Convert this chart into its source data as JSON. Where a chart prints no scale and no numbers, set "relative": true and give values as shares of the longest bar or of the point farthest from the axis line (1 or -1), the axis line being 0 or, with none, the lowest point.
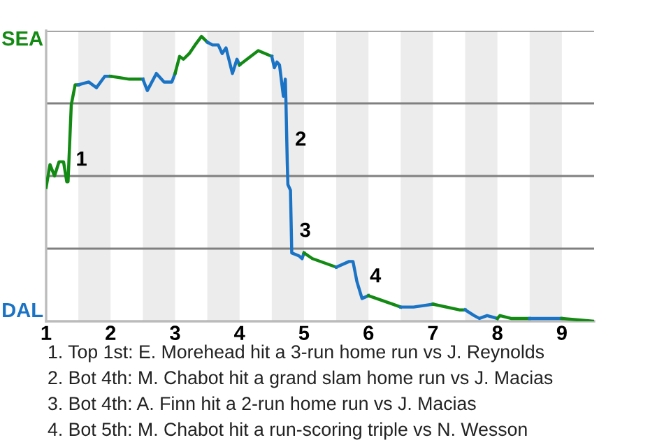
{
  "chart_data": {
    "type": "line",
    "relative": true,
    "xlim": [
      1,
      9.5
    ],
    "xticks": [
      1,
      2,
      3,
      4,
      5,
      6,
      7,
      8,
      9
    ],
    "grid": "y",
    "legend": false,
    "marker": "none",
    "line_style": "solid",
    "series": [
      {
        "color": "#138a13",
        "x": [
          1.0,
          1.06,
          1.13,
          1.2,
          1.27,
          1.32,
          1.34,
          1.39,
          1.45,
          1.5
        ],
        "values": [
          0.47,
          0.55,
          0.51,
          0.56,
          0.56,
          0.49,
          0.49,
          0.76,
          0.83,
          0.83
        ]
      },
      {
        "color": "#1a73c4",
        "x": [
          1.5,
          1.66,
          1.78,
          1.91,
          2.0
        ],
        "values": [
          0.83,
          0.84,
          0.82,
          0.86,
          0.86
        ]
      },
      {
        "color": "#138a13",
        "x": [
          2.0,
          2.29,
          2.5
        ],
        "values": [
          0.86,
          0.85,
          0.85
        ]
      },
      {
        "color": "#1a73c4",
        "x": [
          2.5,
          2.57,
          2.71,
          2.83,
          2.95,
          3.0
        ],
        "values": [
          0.85,
          0.81,
          0.87,
          0.84,
          0.84,
          0.87
        ]
      },
      {
        "color": "#138a13",
        "x": [
          3.0,
          3.07,
          3.13,
          3.22,
          3.31,
          3.41,
          3.5
        ],
        "values": [
          0.87,
          0.93,
          0.92,
          0.94,
          0.97,
          1.0,
          0.98
        ]
      },
      {
        "color": "#1a73c4",
        "x": [
          3.5,
          3.58,
          3.67,
          3.73,
          3.79,
          3.89,
          3.96,
          4.0
        ],
        "values": [
          0.98,
          0.97,
          0.97,
          0.94,
          0.96,
          0.87,
          0.92,
          0.9
        ]
      },
      {
        "color": "#138a13",
        "x": [
          4.0,
          4.29,
          4.5
        ],
        "values": [
          0.9,
          0.95,
          0.93
        ]
      },
      {
        "color": "#1a73c4",
        "x": [
          4.5,
          4.54,
          4.58,
          4.62,
          4.68,
          4.71,
          4.72,
          4.74,
          4.75,
          4.79,
          4.81,
          4.92,
          4.97,
          5.0
        ],
        "values": [
          0.93,
          0.89,
          0.91,
          0.9,
          0.79,
          0.85,
          0.77,
          0.56,
          0.48,
          0.46,
          0.24,
          0.23,
          0.22,
          0.24
        ]
      },
      {
        "color": "#138a13",
        "x": [
          5.0,
          5.13,
          5.5
        ],
        "values": [
          0.24,
          0.22,
          0.19
        ]
      },
      {
        "color": "#1a73c4",
        "x": [
          5.5,
          5.7,
          5.76,
          5.82,
          5.9,
          6.0
        ],
        "values": [
          0.19,
          0.21,
          0.21,
          0.14,
          0.08,
          0.09
        ]
      },
      {
        "color": "#138a13",
        "x": [
          6.0,
          6.38,
          6.5
        ],
        "values": [
          0.09,
          0.06,
          0.05
        ]
      },
      {
        "color": "#1a73c4",
        "x": [
          6.5,
          6.7,
          7.0
        ],
        "values": [
          0.05,
          0.05,
          0.06
        ]
      },
      {
        "color": "#138a13",
        "x": [
          7.0,
          7.41,
          7.5
        ],
        "values": [
          0.06,
          0.04,
          0.04
        ]
      },
      {
        "color": "#1a73c4",
        "x": [
          7.5,
          7.64,
          7.72,
          7.84,
          8.0
        ],
        "values": [
          0.04,
          0.02,
          0.01,
          0.02,
          0.01
        ]
      },
      {
        "color": "#138a13",
        "x": [
          8.0,
          8.04,
          8.21,
          8.5
        ],
        "values": [
          0.01,
          0.02,
          0.01,
          0.01
        ]
      },
      {
        "color": "#1a73c4",
        "x": [
          8.5,
          9.0
        ],
        "values": [
          0.01,
          0.01
        ]
      },
      {
        "color": "#138a13",
        "x": [
          9.0,
          9.5
        ],
        "values": [
          0.01,
          0.0
        ]
      }
    ],
    "bands": [
      {
        "axis": "x",
        "from": 1.5,
        "to": 2,
        "label": null,
        "color": "#ececec"
      },
      {
        "axis": "x",
        "from": 2.5,
        "to": 3,
        "label": null,
        "color": "#ececec"
      },
      {
        "axis": "x",
        "from": 3.5,
        "to": 4,
        "label": null,
        "color": "#ececec"
      },
      {
        "axis": "x",
        "from": 4.5,
        "to": 5,
        "label": null,
        "color": "#ececec"
      },
      {
        "axis": "x",
        "from": 5.5,
        "to": 6,
        "label": null,
        "color": "#ececec"
      },
      {
        "axis": "x",
        "from": 6.5,
        "to": 7,
        "label": null,
        "color": "#ececec"
      },
      {
        "axis": "x",
        "from": 7.5,
        "to": 8,
        "label": null,
        "color": "#ececec"
      },
      {
        "axis": "x",
        "from": 8.5,
        "to": 9,
        "label": null,
        "color": "#ececec"
      }
    ],
    "annotations": [
      "SEA",
      "DAL",
      {
        "text": "1",
        "x": 1.34,
        "y": 0.49
      },
      {
        "text": "2",
        "x": 4.74,
        "y": 0.56
      },
      {
        "text": "3",
        "x": 4.81,
        "y": 0.24
      },
      {
        "text": "4",
        "x": 5.9,
        "y": 0.08
      },
      "1. Top 1st: E. Morehead hit a 3-run home run vs J. Reynolds",
      "2. Bot 4th: M. Chabot hit a grand slam home run vs J. Macias",
      "3. Bot 4th: A. Finn hit a 2-run home run vs J. Macias",
      "4. Bot 5th: M. Chabot hit a run-scoring triple vs N. Wesson"
    ]
  }
}
